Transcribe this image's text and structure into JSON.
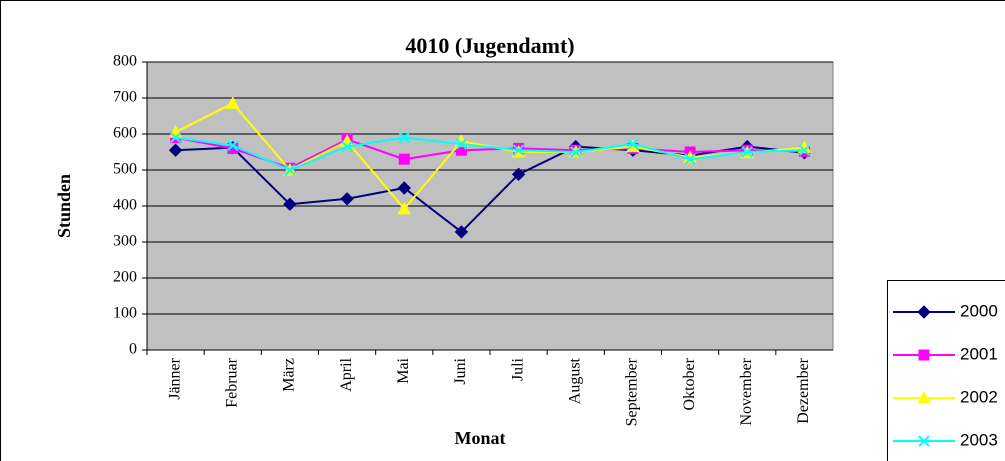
{
  "chart_data": {
    "type": "line",
    "title": "4010 (Jugendamt)",
    "x_label": "Monat",
    "y_label": "Stunden",
    "categories": [
      "Jänner",
      "Februar",
      "März",
      "April",
      "Mai",
      "Juni",
      "Juli",
      "August",
      "September",
      "Oktober",
      "November",
      "Dezember"
    ],
    "series": [
      {
        "name": "2000",
        "color": "#000080",
        "marker": "diamond",
        "values": [
          555,
          562,
          405,
          420,
          450,
          328,
          488,
          565,
          555,
          540,
          565,
          548
        ]
      },
      {
        "name": "2001",
        "color": "#ff00ff",
        "marker": "square",
        "values": [
          590,
          560,
          505,
          585,
          530,
          555,
          560,
          555,
          560,
          550,
          555,
          552
        ]
      },
      {
        "name": "2002",
        "color": "#ffff00",
        "marker": "triangle",
        "values": [
          605,
          685,
          500,
          580,
          392,
          580,
          550,
          550,
          565,
          535,
          548,
          562
        ]
      },
      {
        "name": "2003",
        "color": "#00ffff",
        "marker": "x",
        "values": [
          590,
          568,
          500,
          565,
          590,
          572,
          555,
          550,
          572,
          530,
          550,
          555
        ]
      }
    ],
    "ylim": [
      0,
      800
    ],
    "yticks": [
      0,
      100,
      200,
      300,
      400,
      500,
      600,
      700,
      800
    ],
    "grid": true,
    "legend": "right"
  }
}
